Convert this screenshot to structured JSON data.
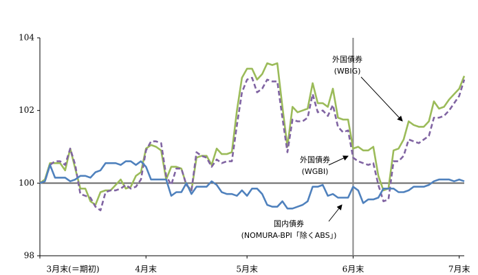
{
  "chart_data": {
    "type": "line",
    "x": [
      0,
      1,
      2,
      3,
      4,
      5,
      6,
      7,
      8,
      9,
      10,
      11,
      12,
      13,
      14,
      15,
      16,
      17,
      18,
      19,
      20,
      21,
      22,
      23,
      24,
      25,
      26,
      27,
      28,
      29,
      30,
      31,
      32,
      33,
      34,
      35,
      36,
      37,
      38,
      39,
      40,
      41,
      42,
      43,
      44,
      45,
      46,
      47,
      48,
      49,
      50,
      51,
      52,
      53,
      54,
      55,
      56,
      57,
      58,
      59,
      60,
      61,
      62,
      63,
      64,
      65,
      66,
      67,
      68,
      69,
      70,
      71,
      72,
      73,
      74,
      75,
      76,
      77,
      78,
      79,
      80,
      81,
      82,
      83,
      84
    ],
    "xlim": [
      0,
      84
    ],
    "xticks": [
      {
        "value": 0,
        "label": "3月末(＝期初)"
      },
      {
        "value": 21,
        "label": "4月末"
      },
      {
        "value": 41,
        "label": "5月末"
      },
      {
        "value": 62,
        "label": "6月末"
      },
      {
        "value": 83,
        "label": "7月末"
      }
    ],
    "ylim": [
      98,
      104
    ],
    "yticks": [
      98,
      100,
      102,
      104
    ],
    "reference_lines": {
      "y": 100,
      "x": 62
    },
    "series": [
      {
        "name": "外国債券 (WBIG)",
        "color": "#9bbb59",
        "dash": false,
        "values": [
          100,
          100.1,
          100.55,
          100.55,
          100.55,
          100.35,
          100.95,
          100.4,
          99.85,
          99.85,
          99.5,
          99.4,
          99.75,
          99.8,
          99.8,
          99.95,
          100.1,
          99.85,
          99.9,
          100.2,
          100.3,
          100.95,
          101.05,
          101.0,
          100.9,
          100.1,
          100.45,
          100.45,
          100.4,
          99.95,
          99.8,
          100.7,
          100.75,
          100.75,
          100.5,
          100.95,
          100.8,
          100.8,
          100.85,
          102.0,
          102.9,
          103.15,
          103.15,
          102.85,
          103.0,
          103.3,
          103.25,
          103.3,
          102.1,
          101.0,
          102.1,
          101.95,
          102.0,
          102.05,
          102.75,
          102.2,
          102.2,
          102.1,
          102.6,
          101.8,
          101.75,
          101.75,
          100.95,
          101.0,
          100.9,
          100.9,
          101.0,
          100.2,
          99.8,
          99.85,
          100.9,
          100.95,
          101.2,
          101.7,
          101.6,
          101.55,
          101.55,
          101.7,
          102.25,
          102.05,
          102.1,
          102.3,
          102.45,
          102.6,
          102.95
        ]
      },
      {
        "name": "外国債券 (WGBI)",
        "color": "#8064a2",
        "dash": true,
        "values": [
          100,
          100.05,
          100.5,
          100.6,
          100.6,
          100.5,
          100.95,
          100.5,
          99.7,
          99.65,
          99.6,
          99.35,
          99.25,
          99.75,
          99.8,
          99.8,
          99.85,
          99.95,
          99.85,
          99.9,
          100.1,
          100.9,
          101.15,
          101.15,
          101.1,
          100.2,
          99.95,
          100.4,
          100.4,
          99.95,
          99.8,
          100.85,
          100.75,
          100.7,
          100.45,
          100.65,
          100.55,
          100.6,
          100.6,
          101.6,
          102.5,
          102.85,
          102.9,
          102.5,
          102.6,
          102.85,
          102.8,
          102.8,
          101.8,
          100.85,
          101.75,
          101.7,
          101.7,
          101.8,
          102.45,
          101.95,
          102.0,
          101.85,
          102.15,
          101.55,
          101.4,
          101.45,
          100.7,
          100.6,
          100.55,
          100.5,
          100.55,
          99.95,
          99.5,
          99.55,
          100.6,
          100.6,
          100.75,
          101.2,
          101.15,
          101.1,
          101.2,
          101.3,
          101.8,
          101.8,
          101.85,
          102.0,
          102.2,
          102.4,
          102.85
        ]
      },
      {
        "name": "国内債券 (NOMURA-BPI「除くABS」)",
        "color": "#4f81bd",
        "dash": false,
        "values": [
          100,
          100.05,
          100.5,
          100.15,
          100.15,
          100.15,
          100.05,
          100.1,
          100.2,
          100.2,
          100.15,
          100.3,
          100.35,
          100.55,
          100.55,
          100.55,
          100.5,
          100.6,
          100.6,
          100.5,
          100.6,
          100.45,
          100.1,
          100.1,
          100.1,
          100.1,
          99.65,
          99.75,
          99.75,
          100.0,
          99.7,
          99.9,
          99.9,
          99.9,
          100.05,
          99.95,
          99.75,
          99.7,
          99.7,
          99.65,
          99.8,
          99.65,
          99.85,
          99.85,
          99.7,
          99.4,
          99.35,
          99.35,
          99.5,
          99.3,
          99.3,
          99.35,
          99.4,
          99.5,
          99.9,
          99.9,
          99.95,
          99.65,
          99.7,
          99.6,
          99.6,
          99.6,
          99.9,
          99.8,
          99.45,
          99.55,
          99.55,
          99.6,
          99.85,
          99.85,
          99.85,
          99.75,
          99.75,
          99.8,
          99.9,
          99.9,
          99.9,
          99.95,
          100.05,
          100.1,
          100.1,
          100.1,
          100.05,
          100.1,
          100.05
        ]
      }
    ],
    "annotations": [
      {
        "lines": [
          "外国債券",
          "(WBIG)"
        ]
      },
      {
        "lines": [
          "外国債券",
          "(WGBI)"
        ]
      },
      {
        "lines": [
          "国内債券",
          "(NOMURA-BPI「除くABS」)"
        ]
      }
    ]
  }
}
